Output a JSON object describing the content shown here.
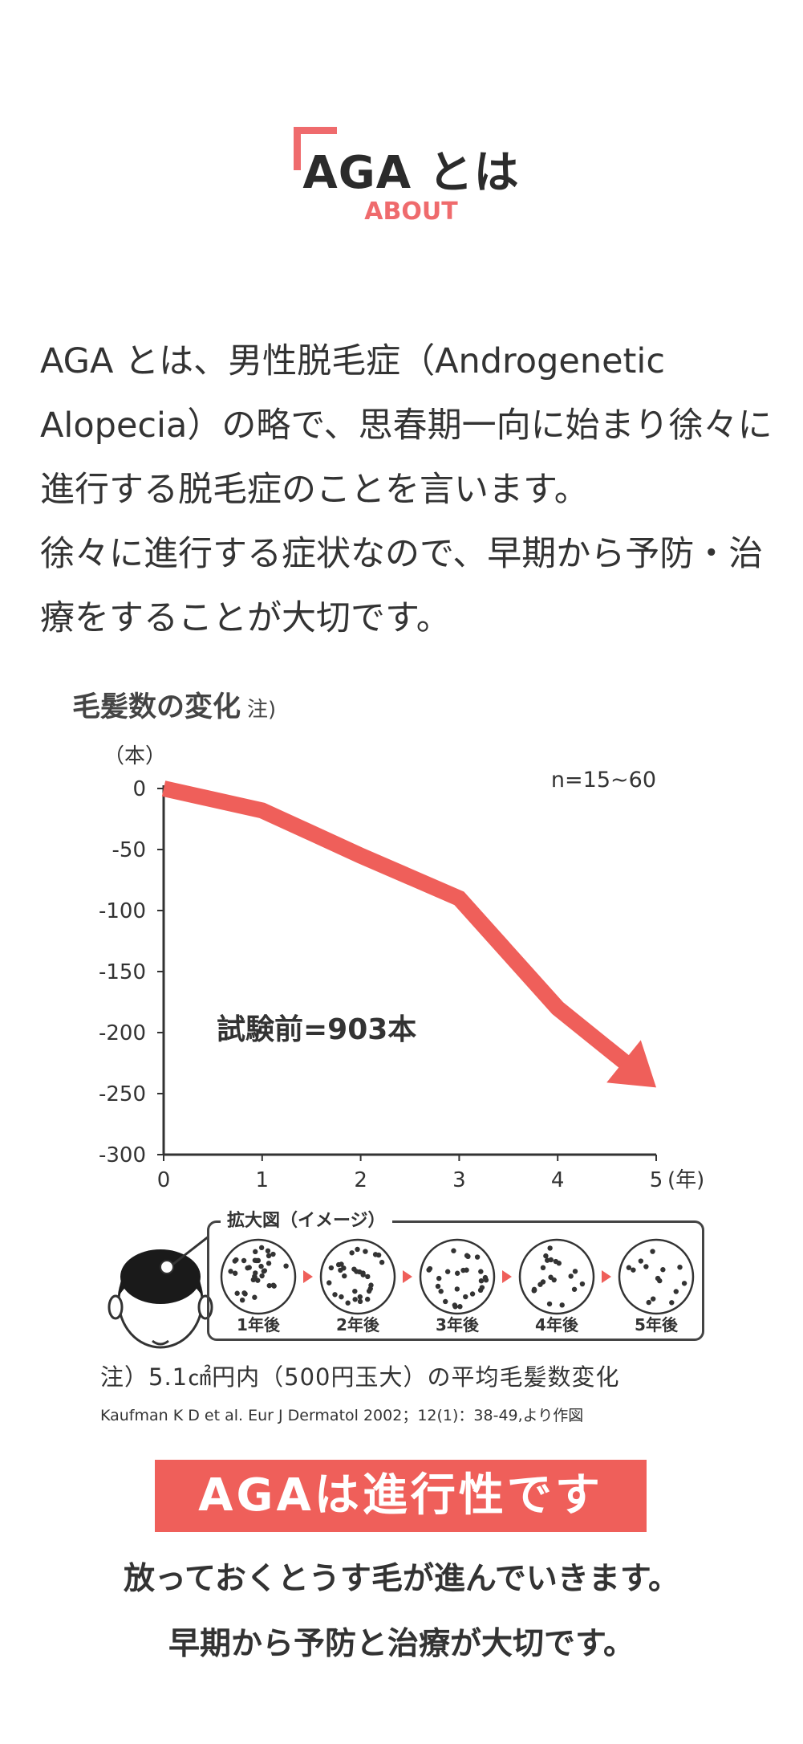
{
  "header": {
    "title": "AGA とは",
    "subtitle": "ABOUT"
  },
  "intro": {
    "paragraph1": "AGA とは、男性脱毛症（Androgenetic Alopecia）の略で、思春期一向に始まり徐々に進行する脱毛症のことを言います。",
    "paragraph2": "徐々に進行する症状なので、早期から予防・治療をすることが大切です。"
  },
  "chart_title": "毛髪数の変化",
  "chart_title_note": "注)",
  "chart_data": {
    "type": "line",
    "title": "毛髪数の変化",
    "ylabel": "（本）",
    "xlabel": "(年)",
    "x": [
      0,
      1,
      2,
      3,
      4,
      5
    ],
    "series": [
      {
        "values": [
          0,
          -18,
          -55,
          -90,
          -180,
          -245
        ]
      }
    ],
    "xlim": [
      0,
      5
    ],
    "ylim": [
      -300,
      0
    ],
    "x_ticks": [
      "0",
      "1",
      "2",
      "3",
      "4",
      "5"
    ],
    "y_ticks": [
      "0",
      "-50",
      "-100",
      "-150",
      "-200",
      "-250",
      "-300"
    ],
    "annotations": [
      "n=15~60",
      "試験前=903本"
    ],
    "line_color": "#ef5f5a",
    "grid": false
  },
  "magnification": {
    "label": "拡大図（イメージ）",
    "stages": [
      {
        "label": "1年後",
        "dots": 34
      },
      {
        "label": "2年後",
        "dots": 30
      },
      {
        "label": "3年後",
        "dots": 26
      },
      {
        "label": "4年後",
        "dots": 20
      },
      {
        "label": "5年後",
        "dots": 14
      }
    ]
  },
  "footnote": "注）5.1㎠円内（500円玉大）の平均毛髪数変化",
  "citation": "Kaufman K D et al. Eur J Dermatol 2002；12(1)：38-49,より作図",
  "banner": "AGAは進行性です",
  "closing": {
    "line1": "放っておくとうす毛が進んでいきます。",
    "line2": "早期から予防と治療が大切です。"
  },
  "colors": {
    "accent": "#ef6b6d",
    "banner": "#ef5f5a",
    "text": "#333333"
  }
}
